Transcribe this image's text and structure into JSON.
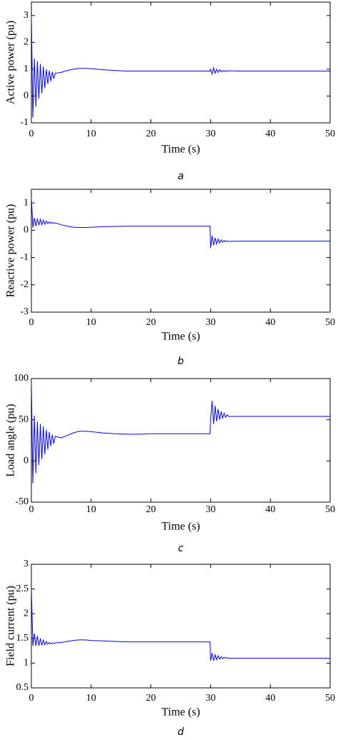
{
  "chart_data": [
    {
      "type": "line",
      "x_label": "Time (s)",
      "y_label": "Active power (pu)",
      "caption": "a",
      "xlim": [
        0,
        50
      ],
      "xticks": [
        0,
        10,
        20,
        30,
        40,
        50
      ],
      "ylim": [
        -1,
        3.5
      ],
      "yticks": [
        -1,
        0,
        1,
        2,
        3
      ],
      "x": [
        0,
        0.25,
        0.5,
        0.75,
        1,
        1.25,
        1.5,
        1.75,
        2,
        2.25,
        2.5,
        2.75,
        3,
        3.25,
        3.5,
        3.75,
        4,
        5,
        6,
        7,
        8,
        9,
        10,
        12,
        14,
        16,
        18,
        20,
        22,
        24,
        26,
        28,
        29.9,
        30,
        30.25,
        30.5,
        30.75,
        31,
        31.25,
        31.5,
        31.75,
        32,
        32.25,
        32.5,
        32.75,
        33,
        35,
        40,
        45,
        50
      ],
      "series": [
        {
          "color": "#0000ff",
          "values": [
            3,
            -0.8,
            1.4,
            -0.4,
            1.3,
            -0.1,
            1.2,
            0.1,
            1.1,
            0.3,
            1.0,
            0.45,
            0.95,
            0.55,
            0.9,
            0.65,
            0.85,
            0.88,
            0.95,
            1.0,
            1.03,
            1.03,
            1.02,
            0.98,
            0.95,
            0.93,
            0.93,
            0.93,
            0.93,
            0.93,
            0.93,
            0.93,
            0.93,
            1.0,
            0.82,
            1.05,
            0.85,
            1.0,
            0.88,
            0.98,
            0.9,
            0.96,
            0.91,
            0.95,
            0.92,
            0.94,
            0.93,
            0.93,
            0.93,
            0.93
          ]
        }
      ]
    },
    {
      "type": "line",
      "x_label": "Time (s)",
      "y_label": "Reactive power (pu)",
      "caption": "b",
      "xlim": [
        0,
        50
      ],
      "xticks": [
        0,
        10,
        20,
        30,
        40,
        50
      ],
      "ylim": [
        -3,
        1.5
      ],
      "yticks": [
        -3,
        -2,
        -1,
        0,
        1
      ],
      "x": [
        0,
        0.25,
        0.5,
        0.75,
        1,
        1.25,
        1.5,
        1.75,
        2,
        2.25,
        2.5,
        2.75,
        3,
        3.25,
        3.5,
        3.75,
        4,
        5,
        6,
        7,
        8,
        9,
        10,
        12,
        14,
        16,
        18,
        20,
        22,
        24,
        26,
        28,
        29.9,
        30,
        30.25,
        30.5,
        30.75,
        31,
        31.25,
        31.5,
        31.75,
        32,
        32.25,
        32.5,
        32.75,
        33,
        35,
        40,
        45,
        50
      ],
      "series": [
        {
          "color": "#0000ff",
          "values": [
            1.2,
            0.1,
            0.45,
            0.15,
            0.42,
            0.18,
            0.4,
            0.2,
            0.37,
            0.22,
            0.34,
            0.24,
            0.31,
            0.25,
            0.29,
            0.25,
            0.27,
            0.2,
            0.15,
            0.11,
            0.1,
            0.1,
            0.11,
            0.13,
            0.14,
            0.15,
            0.15,
            0.15,
            0.15,
            0.15,
            0.15,
            0.15,
            0.15,
            -0.65,
            -0.2,
            -0.55,
            -0.28,
            -0.5,
            -0.32,
            -0.47,
            -0.35,
            -0.44,
            -0.37,
            -0.42,
            -0.39,
            -0.41,
            -0.4,
            -0.4,
            -0.4,
            -0.4
          ]
        }
      ]
    },
    {
      "type": "line",
      "x_label": "Time (s)",
      "y_label": "Load angle (pu)",
      "caption": "c",
      "xlim": [
        0,
        50
      ],
      "xticks": [
        0,
        10,
        20,
        30,
        40,
        50
      ],
      "ylim": [
        -50,
        100
      ],
      "yticks": [
        -50,
        0,
        50,
        100
      ],
      "x": [
        0,
        0.25,
        0.5,
        0.75,
        1,
        1.25,
        1.5,
        1.75,
        2,
        2.25,
        2.5,
        2.75,
        3,
        3.25,
        3.5,
        3.75,
        4,
        5,
        6,
        7,
        8,
        9,
        10,
        12,
        14,
        16,
        18,
        20,
        22,
        24,
        26,
        28,
        29.9,
        30,
        30.25,
        30.5,
        30.75,
        31,
        31.25,
        31.5,
        31.75,
        32,
        32.25,
        32.5,
        32.75,
        33,
        35,
        40,
        45,
        50
      ],
      "series": [
        {
          "color": "#0000ff",
          "values": [
            95,
            -27,
            55,
            -15,
            48,
            -5,
            45,
            2,
            42,
            8,
            38,
            14,
            35,
            18,
            32,
            21,
            30,
            28,
            31,
            34,
            36,
            36,
            35.5,
            34,
            33,
            32.5,
            32.5,
            33,
            33,
            33,
            33,
            33,
            33,
            50,
            73,
            45,
            67,
            48,
            63,
            50,
            60,
            52,
            58,
            53,
            56,
            54,
            54,
            54,
            54,
            54
          ]
        }
      ]
    },
    {
      "type": "line",
      "x_label": "Time (s)",
      "y_label": "Field current (pu)",
      "caption": "d",
      "xlim": [
        0,
        50
      ],
      "xticks": [
        0,
        10,
        20,
        30,
        40,
        50
      ],
      "ylim": [
        0.5,
        3
      ],
      "yticks": [
        0.5,
        1,
        1.5,
        2,
        2.5,
        3
      ],
      "x": [
        0,
        0.25,
        0.5,
        0.75,
        1,
        1.25,
        1.5,
        1.75,
        2,
        2.25,
        2.5,
        2.75,
        3,
        3.25,
        3.5,
        3.75,
        4,
        5,
        6,
        7,
        8,
        9,
        10,
        12,
        14,
        16,
        18,
        20,
        22,
        24,
        26,
        28,
        29.9,
        30,
        30.25,
        30.5,
        30.75,
        31,
        31.25,
        31.5,
        31.75,
        32,
        32.25,
        32.5,
        32.75,
        33,
        35,
        40,
        45,
        50
      ],
      "series": [
        {
          "color": "#0000ff",
          "values": [
            2.5,
            1.35,
            1.6,
            1.35,
            1.55,
            1.35,
            1.5,
            1.36,
            1.47,
            1.37,
            1.44,
            1.38,
            1.42,
            1.39,
            1.41,
            1.4,
            1.41,
            1.42,
            1.44,
            1.46,
            1.47,
            1.47,
            1.46,
            1.45,
            1.44,
            1.43,
            1.43,
            1.43,
            1.43,
            1.43,
            1.43,
            1.43,
            1.43,
            1.05,
            1.2,
            1.05,
            1.17,
            1.07,
            1.15,
            1.08,
            1.13,
            1.09,
            1.12,
            1.1,
            1.11,
            1.1,
            1.1,
            1.1,
            1.1,
            1.1
          ]
        }
      ]
    }
  ]
}
